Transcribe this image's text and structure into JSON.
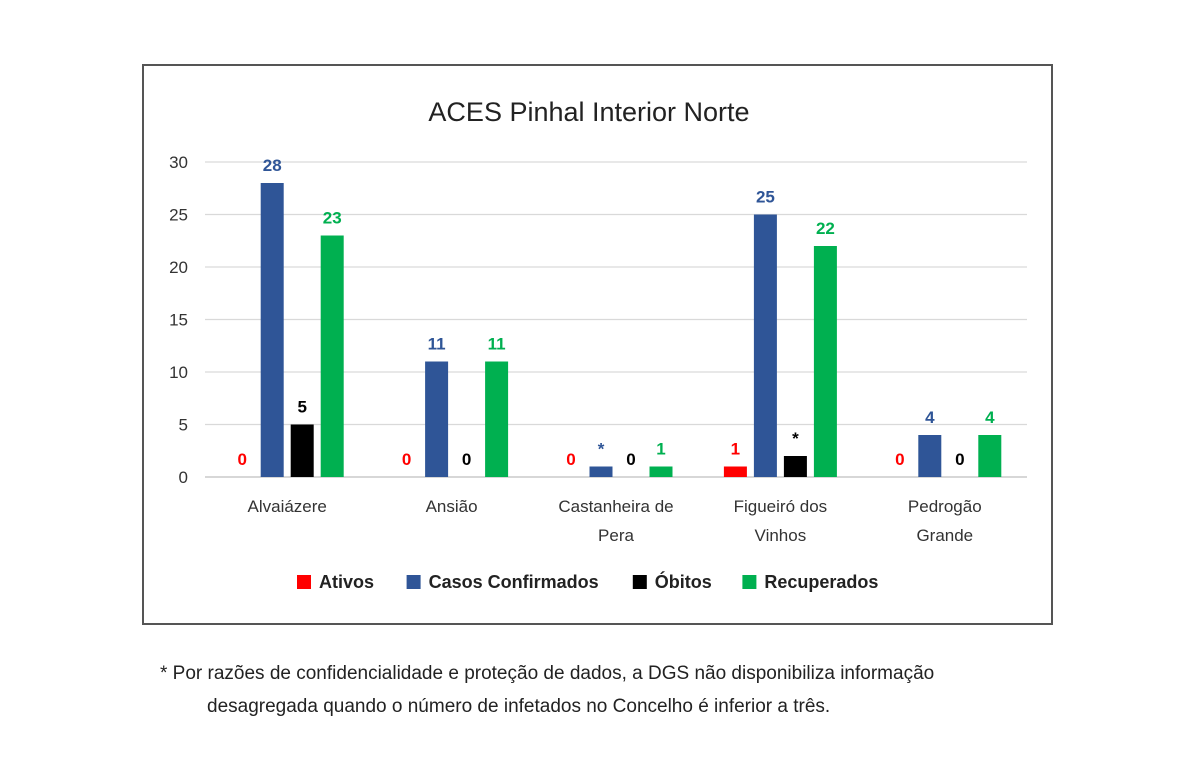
{
  "chart_data": {
    "type": "bar",
    "title": "ACES Pinhal Interior Norte",
    "categories": [
      [
        "Alvaiázere"
      ],
      [
        "Ansião"
      ],
      [
        "Castanheira de",
        "Pera"
      ],
      [
        "Figueiró dos",
        "Vinhos"
      ],
      [
        "Pedrogão",
        "Grande"
      ]
    ],
    "series": [
      {
        "name": "Ativos",
        "color": "#ff0000",
        "values": [
          0,
          0,
          0,
          1,
          0
        ],
        "labels": [
          "0",
          "0",
          "0",
          "1",
          "0"
        ]
      },
      {
        "name": "Casos Confirmados",
        "color": "#2f5597",
        "values": [
          28,
          11,
          1,
          25,
          4
        ],
        "labels": [
          "28",
          "11",
          "*",
          "25",
          "4"
        ]
      },
      {
        "name": "Óbitos",
        "color": "#000000",
        "values": [
          5,
          0,
          0,
          2,
          0
        ],
        "labels": [
          "5",
          "0",
          "0",
          "*",
          "0"
        ]
      },
      {
        "name": "Recuperados",
        "color": "#00b050",
        "values": [
          23,
          11,
          1,
          22,
          4
        ],
        "labels": [
          "23",
          "11",
          "1",
          "22",
          "4"
        ]
      }
    ],
    "ylim": [
      0,
      30
    ],
    "yticks": [
      0,
      5,
      10,
      15,
      20,
      25,
      30
    ],
    "grid": true,
    "legend_position": "bottom"
  },
  "footnote": {
    "line1": "* Por razões de confidencialidade e proteção de dados, a DGS não disponibiliza informação",
    "line2": "desagregada quando o número de infetados no Concelho é inferior a três."
  }
}
